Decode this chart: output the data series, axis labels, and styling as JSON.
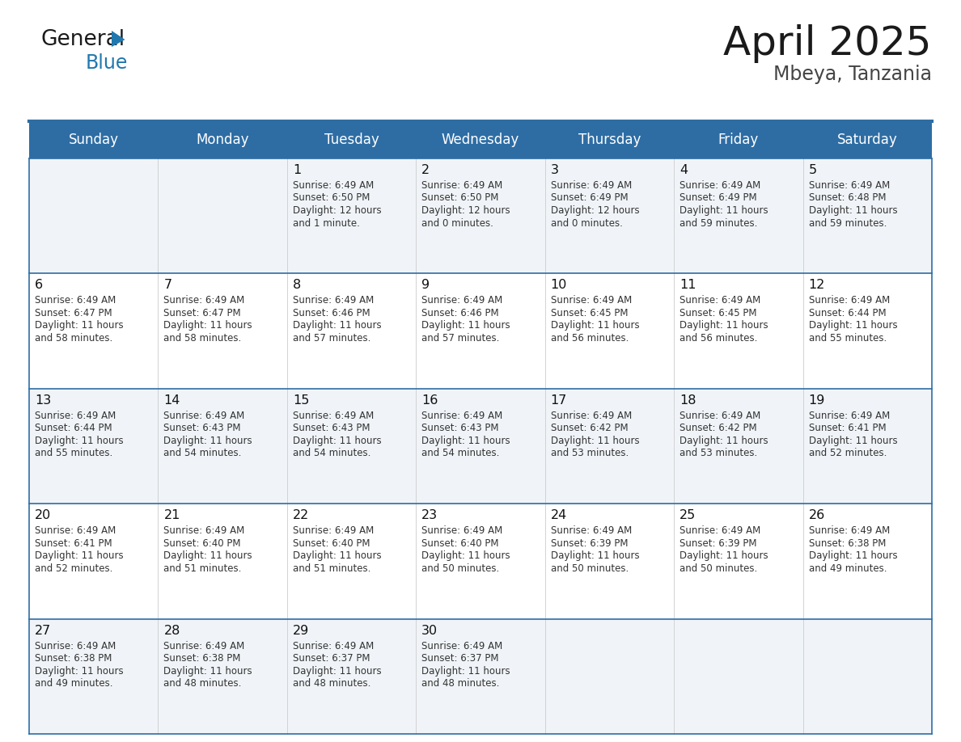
{
  "title": "April 2025",
  "subtitle": "Mbeya, Tanzania",
  "days_of_week": [
    "Sunday",
    "Monday",
    "Tuesday",
    "Wednesday",
    "Thursday",
    "Friday",
    "Saturday"
  ],
  "header_bg": "#2E6DA4",
  "header_text_color": "#FFFFFF",
  "cell_bg_light": "#F0F4F8",
  "cell_bg_white": "#FFFFFF",
  "cell_text_color": "#333333",
  "day_num_color": "#111111",
  "grid_line_color": "#2E6DA4",
  "title_color": "#1a1a1a",
  "subtitle_color": "#444444",
  "logo_text_color": "#1a1a1a",
  "logo_blue_color": "#2178AE",
  "calendar": [
    [
      null,
      null,
      {
        "day": 1,
        "sunrise": "6:49 AM",
        "sunset": "6:50 PM",
        "dl1": "12 hours",
        "dl2": "and 1 minute."
      },
      {
        "day": 2,
        "sunrise": "6:49 AM",
        "sunset": "6:50 PM",
        "dl1": "12 hours",
        "dl2": "and 0 minutes."
      },
      {
        "day": 3,
        "sunrise": "6:49 AM",
        "sunset": "6:49 PM",
        "dl1": "12 hours",
        "dl2": "and 0 minutes."
      },
      {
        "day": 4,
        "sunrise": "6:49 AM",
        "sunset": "6:49 PM",
        "dl1": "11 hours",
        "dl2": "and 59 minutes."
      },
      {
        "day": 5,
        "sunrise": "6:49 AM",
        "sunset": "6:48 PM",
        "dl1": "11 hours",
        "dl2": "and 59 minutes."
      }
    ],
    [
      {
        "day": 6,
        "sunrise": "6:49 AM",
        "sunset": "6:47 PM",
        "dl1": "11 hours",
        "dl2": "and 58 minutes."
      },
      {
        "day": 7,
        "sunrise": "6:49 AM",
        "sunset": "6:47 PM",
        "dl1": "11 hours",
        "dl2": "and 58 minutes."
      },
      {
        "day": 8,
        "sunrise": "6:49 AM",
        "sunset": "6:46 PM",
        "dl1": "11 hours",
        "dl2": "and 57 minutes."
      },
      {
        "day": 9,
        "sunrise": "6:49 AM",
        "sunset": "6:46 PM",
        "dl1": "11 hours",
        "dl2": "and 57 minutes."
      },
      {
        "day": 10,
        "sunrise": "6:49 AM",
        "sunset": "6:45 PM",
        "dl1": "11 hours",
        "dl2": "and 56 minutes."
      },
      {
        "day": 11,
        "sunrise": "6:49 AM",
        "sunset": "6:45 PM",
        "dl1": "11 hours",
        "dl2": "and 56 minutes."
      },
      {
        "day": 12,
        "sunrise": "6:49 AM",
        "sunset": "6:44 PM",
        "dl1": "11 hours",
        "dl2": "and 55 minutes."
      }
    ],
    [
      {
        "day": 13,
        "sunrise": "6:49 AM",
        "sunset": "6:44 PM",
        "dl1": "11 hours",
        "dl2": "and 55 minutes."
      },
      {
        "day": 14,
        "sunrise": "6:49 AM",
        "sunset": "6:43 PM",
        "dl1": "11 hours",
        "dl2": "and 54 minutes."
      },
      {
        "day": 15,
        "sunrise": "6:49 AM",
        "sunset": "6:43 PM",
        "dl1": "11 hours",
        "dl2": "and 54 minutes."
      },
      {
        "day": 16,
        "sunrise": "6:49 AM",
        "sunset": "6:43 PM",
        "dl1": "11 hours",
        "dl2": "and 54 minutes."
      },
      {
        "day": 17,
        "sunrise": "6:49 AM",
        "sunset": "6:42 PM",
        "dl1": "11 hours",
        "dl2": "and 53 minutes."
      },
      {
        "day": 18,
        "sunrise": "6:49 AM",
        "sunset": "6:42 PM",
        "dl1": "11 hours",
        "dl2": "and 53 minutes."
      },
      {
        "day": 19,
        "sunrise": "6:49 AM",
        "sunset": "6:41 PM",
        "dl1": "11 hours",
        "dl2": "and 52 minutes."
      }
    ],
    [
      {
        "day": 20,
        "sunrise": "6:49 AM",
        "sunset": "6:41 PM",
        "dl1": "11 hours",
        "dl2": "and 52 minutes."
      },
      {
        "day": 21,
        "sunrise": "6:49 AM",
        "sunset": "6:40 PM",
        "dl1": "11 hours",
        "dl2": "and 51 minutes."
      },
      {
        "day": 22,
        "sunrise": "6:49 AM",
        "sunset": "6:40 PM",
        "dl1": "11 hours",
        "dl2": "and 51 minutes."
      },
      {
        "day": 23,
        "sunrise": "6:49 AM",
        "sunset": "6:40 PM",
        "dl1": "11 hours",
        "dl2": "and 50 minutes."
      },
      {
        "day": 24,
        "sunrise": "6:49 AM",
        "sunset": "6:39 PM",
        "dl1": "11 hours",
        "dl2": "and 50 minutes."
      },
      {
        "day": 25,
        "sunrise": "6:49 AM",
        "sunset": "6:39 PM",
        "dl1": "11 hours",
        "dl2": "and 50 minutes."
      },
      {
        "day": 26,
        "sunrise": "6:49 AM",
        "sunset": "6:38 PM",
        "dl1": "11 hours",
        "dl2": "and 49 minutes."
      }
    ],
    [
      {
        "day": 27,
        "sunrise": "6:49 AM",
        "sunset": "6:38 PM",
        "dl1": "11 hours",
        "dl2": "and 49 minutes."
      },
      {
        "day": 28,
        "sunrise": "6:49 AM",
        "sunset": "6:38 PM",
        "dl1": "11 hours",
        "dl2": "and 48 minutes."
      },
      {
        "day": 29,
        "sunrise": "6:49 AM",
        "sunset": "6:37 PM",
        "dl1": "11 hours",
        "dl2": "and 48 minutes."
      },
      {
        "day": 30,
        "sunrise": "6:49 AM",
        "sunset": "6:37 PM",
        "dl1": "11 hours",
        "dl2": "and 48 minutes."
      },
      null,
      null,
      null
    ]
  ]
}
